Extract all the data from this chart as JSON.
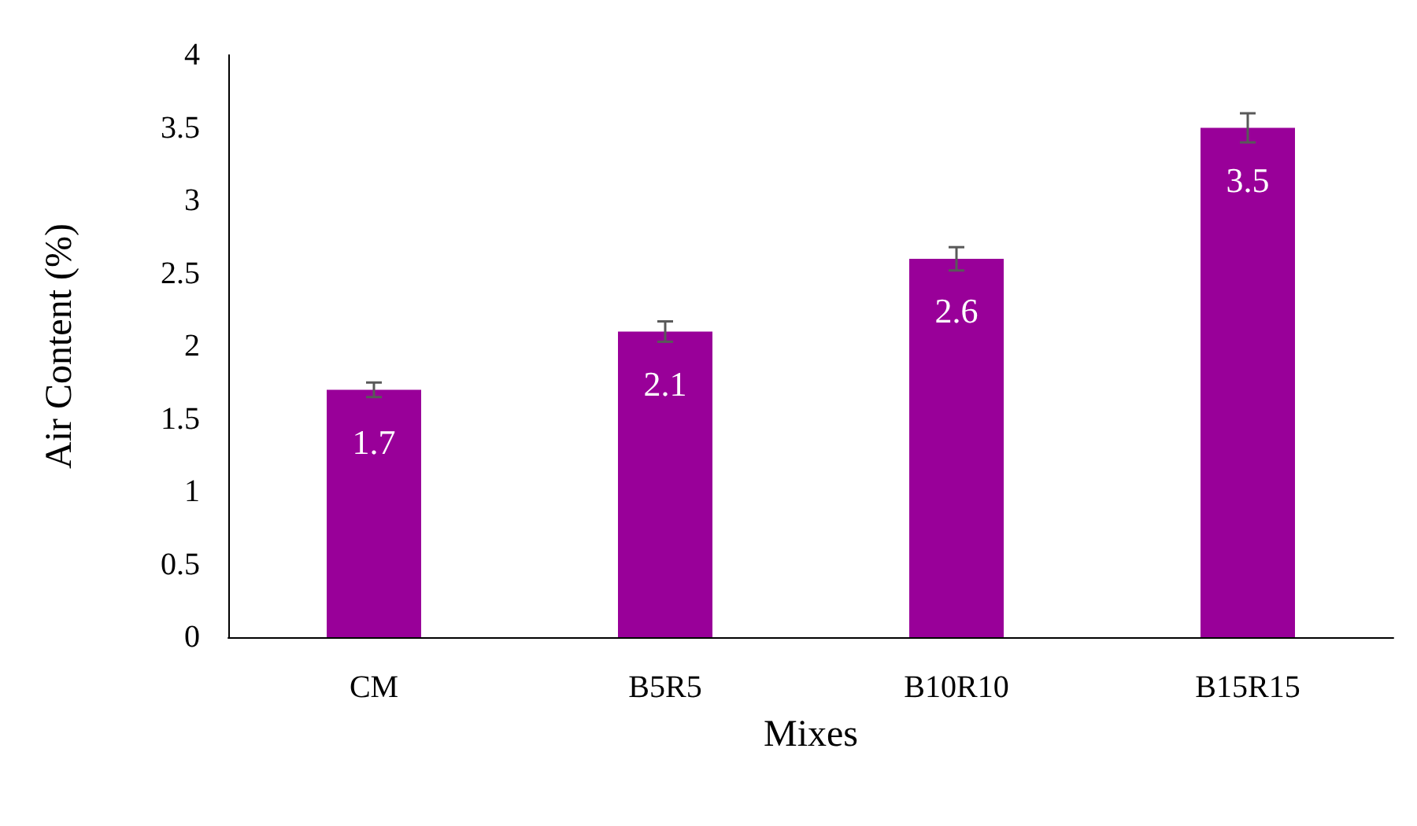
{
  "chart_data": {
    "type": "bar",
    "xlabel": "Mixes",
    "ylabel": "Air Content (%)",
    "categories": [
      "CM",
      "B5R5",
      "B10R10",
      "B15R15"
    ],
    "values": [
      1.7,
      2.1,
      2.6,
      3.5
    ],
    "errors": [
      0.05,
      0.07,
      0.08,
      0.1
    ],
    "color": "#990099",
    "ylim": [
      0,
      4
    ],
    "yticks": [
      0,
      0.5,
      1,
      1.5,
      2,
      2.5,
      3,
      3.5,
      4
    ],
    "grid": false,
    "data_labels": true
  }
}
